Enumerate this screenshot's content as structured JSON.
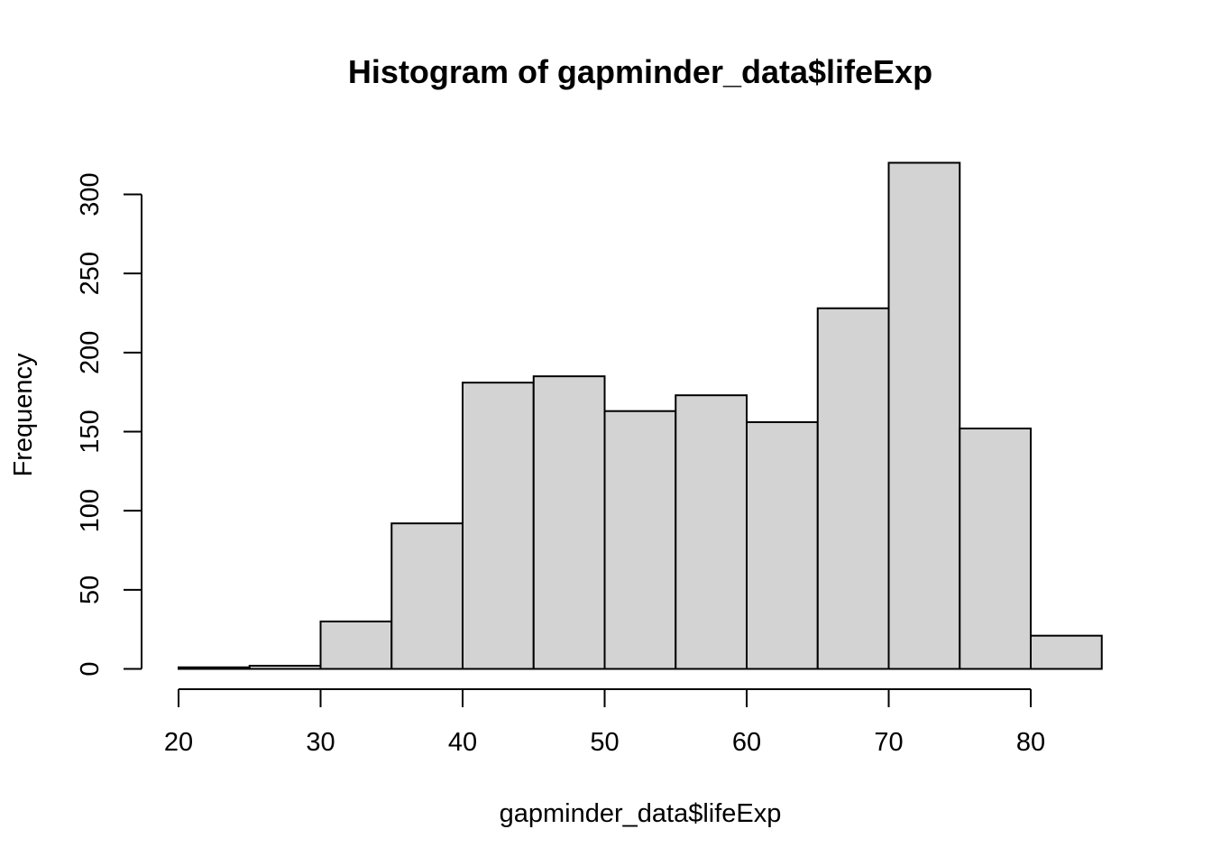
{
  "chart_data": {
    "type": "bar",
    "title": "Histogram of gapminder_data$lifeExp",
    "xlabel": "gapminder_data$lifeExp",
    "ylabel": "Frequency",
    "bins": [
      {
        "start": 20,
        "end": 25,
        "count": 1
      },
      {
        "start": 25,
        "end": 30,
        "count": 2
      },
      {
        "start": 30,
        "end": 35,
        "count": 30
      },
      {
        "start": 35,
        "end": 40,
        "count": 92
      },
      {
        "start": 40,
        "end": 45,
        "count": 181
      },
      {
        "start": 45,
        "end": 50,
        "count": 185
      },
      {
        "start": 50,
        "end": 55,
        "count": 163
      },
      {
        "start": 55,
        "end": 60,
        "count": 173
      },
      {
        "start": 60,
        "end": 65,
        "count": 156
      },
      {
        "start": 65,
        "end": 70,
        "count": 228
      },
      {
        "start": 70,
        "end": 75,
        "count": 320
      },
      {
        "start": 75,
        "end": 80,
        "count": 152
      },
      {
        "start": 80,
        "end": 85,
        "count": 21
      }
    ],
    "xlim": [
      20,
      85
    ],
    "ylim": [
      0,
      320
    ],
    "x_ticks": [
      "20",
      "30",
      "40",
      "50",
      "60",
      "70",
      "80"
    ],
    "y_ticks": [
      "0",
      "50",
      "100",
      "150",
      "200",
      "250",
      "300"
    ],
    "bar_color": "#d3d3d3",
    "grid": false,
    "legend": "none"
  }
}
